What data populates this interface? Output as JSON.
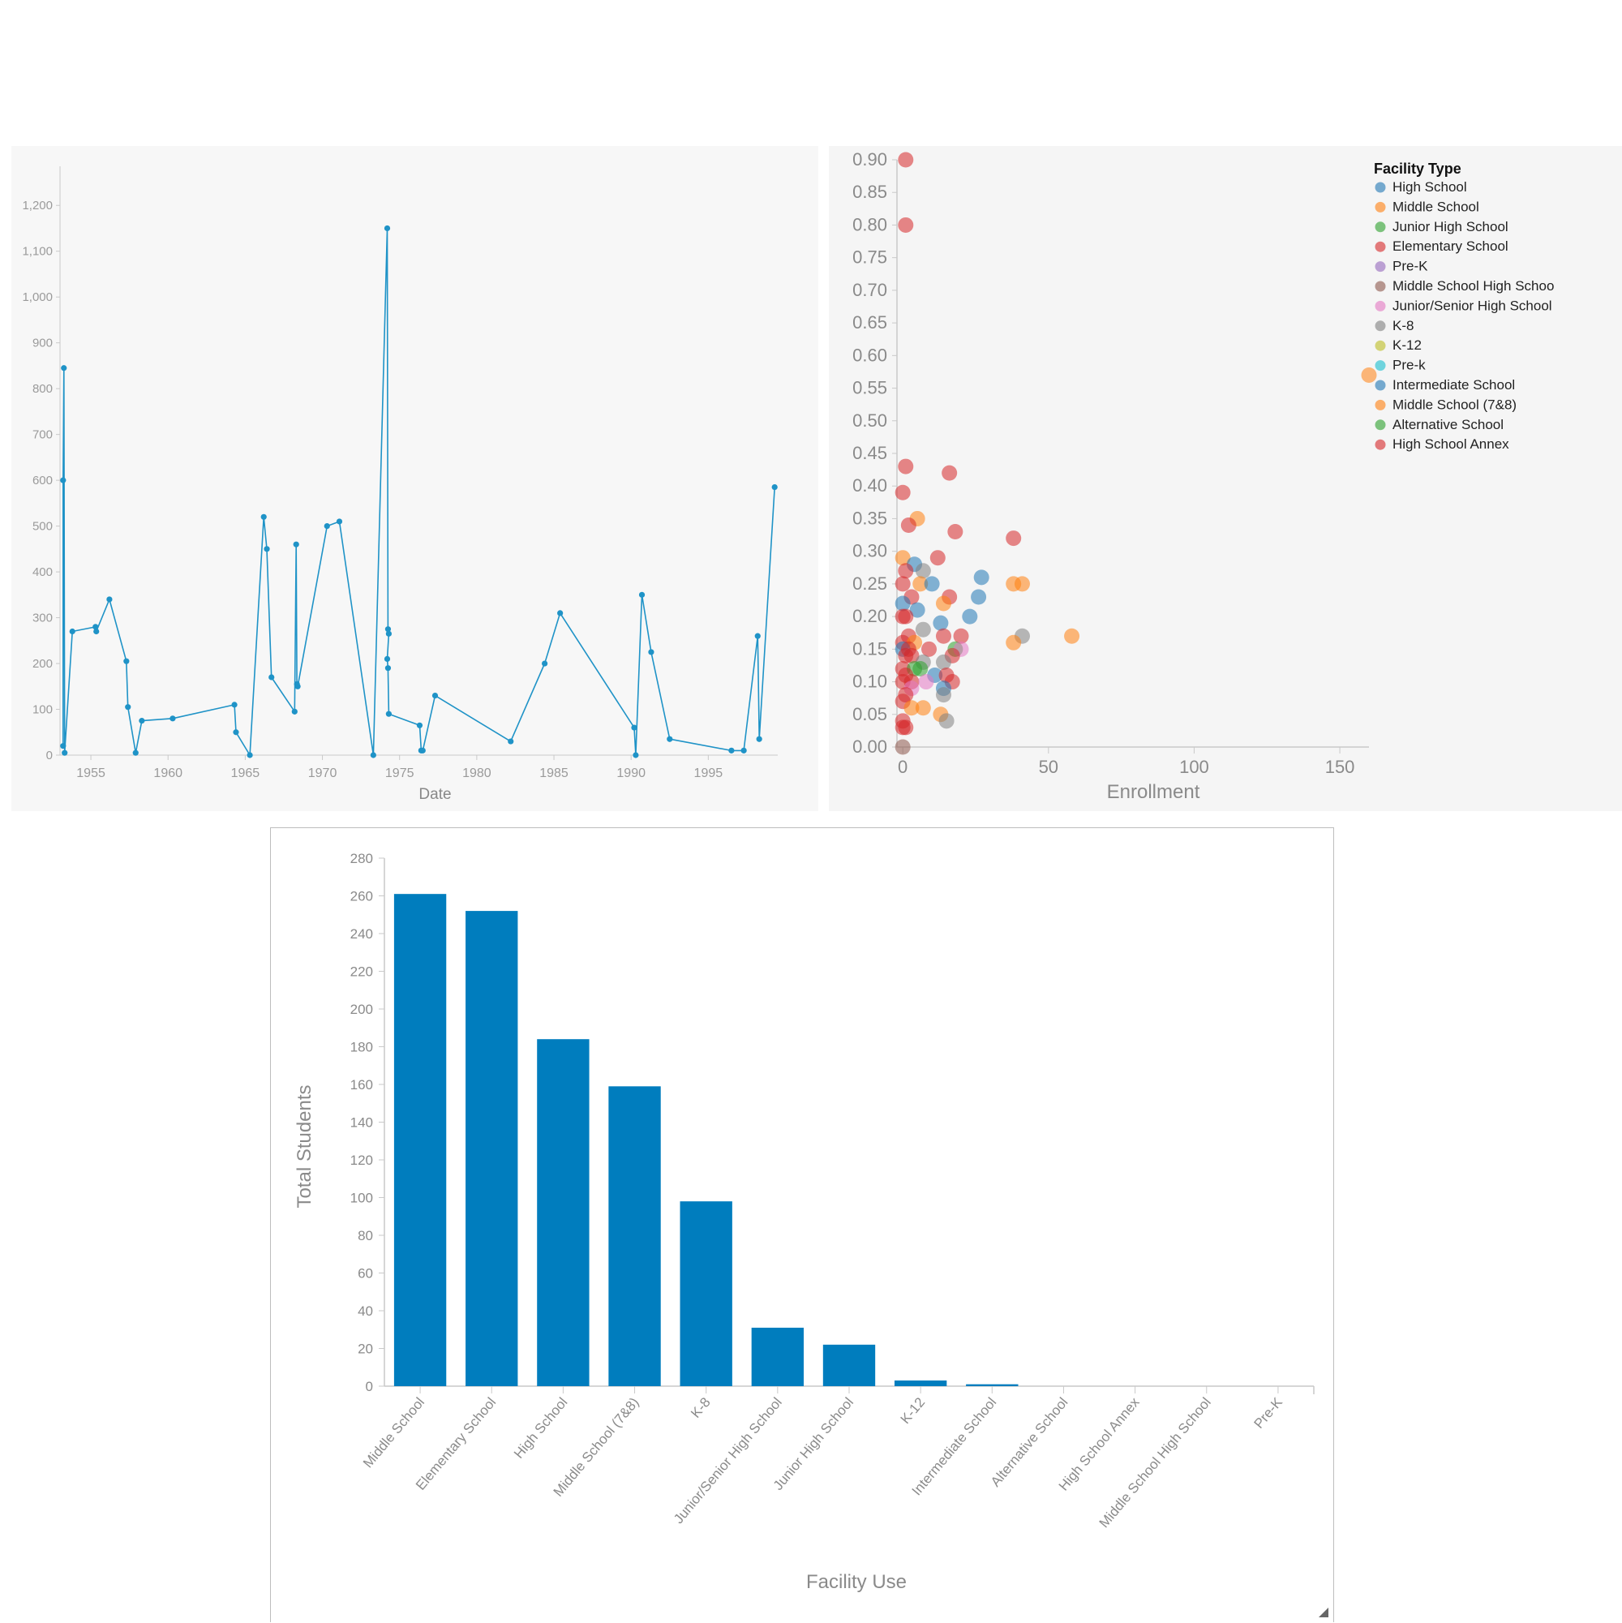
{
  "chart_data": [
    {
      "type": "line",
      "xlabel": "Date",
      "ylabel": "",
      "xlim": [
        1953,
        1999.5
      ],
      "ylim": [
        0,
        1250
      ],
      "x_ticks": [
        "1955",
        "1960",
        "1965",
        "1970",
        "1975",
        "1980",
        "1985",
        "1990",
        "1995"
      ],
      "y_ticks": [
        "0",
        "100",
        "200",
        "300",
        "400",
        "500",
        "600",
        "700",
        "800",
        "900",
        "1,000",
        "1,100",
        "1,200"
      ],
      "color": "#1f93c7",
      "points": [
        [
          1953.2,
          20
        ],
        [
          1953.2,
          600
        ],
        [
          1953.25,
          845
        ],
        [
          1953.3,
          5
        ],
        [
          1953.8,
          270
        ],
        [
          1955.3,
          280
        ],
        [
          1955.35,
          270
        ],
        [
          1956.2,
          340
        ],
        [
          1957.3,
          205
        ],
        [
          1957.4,
          105
        ],
        [
          1957.9,
          5
        ],
        [
          1958.3,
          75
        ],
        [
          1960.3,
          80
        ],
        [
          1964.3,
          110
        ],
        [
          1964.4,
          50
        ],
        [
          1965.3,
          0
        ],
        [
          1966.2,
          520
        ],
        [
          1966.4,
          450
        ],
        [
          1966.7,
          170
        ],
        [
          1968.2,
          95
        ],
        [
          1968.3,
          460
        ],
        [
          1968.35,
          155
        ],
        [
          1968.4,
          150
        ],
        [
          1970.3,
          500
        ],
        [
          1971.1,
          510
        ],
        [
          1973.3,
          0
        ],
        [
          1974.2,
          1150
        ],
        [
          1974.25,
          275
        ],
        [
          1974.3,
          265
        ],
        [
          1974.2,
          210
        ],
        [
          1974.25,
          190
        ],
        [
          1974.3,
          90
        ],
        [
          1976.3,
          65
        ],
        [
          1976.4,
          10
        ],
        [
          1976.5,
          10
        ],
        [
          1977.3,
          130
        ],
        [
          1982.2,
          30
        ],
        [
          1984.4,
          200
        ],
        [
          1985.4,
          310
        ],
        [
          1990.2,
          60
        ],
        [
          1990.3,
          0
        ],
        [
          1990.7,
          350
        ],
        [
          1991.3,
          225
        ],
        [
          1992.5,
          35
        ],
        [
          1996.5,
          10
        ],
        [
          1997.3,
          10
        ],
        [
          1998.2,
          260
        ],
        [
          1998.3,
          35
        ],
        [
          1999.3,
          585
        ]
      ]
    },
    {
      "type": "scatter",
      "xlabel": "Enrollment",
      "ylabel": "",
      "xlim": [
        -2,
        160
      ],
      "ylim": [
        0,
        0.9
      ],
      "x_ticks": [
        "0",
        "50",
        "100",
        "150"
      ],
      "y_ticks": [
        "0.00",
        "0.05",
        "0.10",
        "0.15",
        "0.20",
        "0.25",
        "0.30",
        "0.35",
        "0.40",
        "0.45",
        "0.50",
        "0.55",
        "0.60",
        "0.65",
        "0.70",
        "0.75",
        "0.80",
        "0.85",
        "0.90"
      ],
      "legend": {
        "title": "Facility Type",
        "placement": "top-right",
        "entries": [
          {
            "label": "High School",
            "color": "#1f77b4"
          },
          {
            "label": "Middle School",
            "color": "#ff7f0e"
          },
          {
            "label": "Junior High School",
            "color": "#2ca02c"
          },
          {
            "label": "Elementary School",
            "color": "#d62728"
          },
          {
            "label": "Pre-K",
            "color": "#9467bd"
          },
          {
            "label": "Middle School High Schoo",
            "color": "#8c564b"
          },
          {
            "label": "Junior/Senior High School",
            "color": "#e377c2"
          },
          {
            "label": "K-8",
            "color": "#7f7f7f"
          },
          {
            "label": "K-12",
            "color": "#bcbd22"
          },
          {
            "label": "Pre-k",
            "color": "#17becf"
          },
          {
            "label": "Intermediate School",
            "color": "#1f77b4"
          },
          {
            "label": "Middle School (7&8)",
            "color": "#ff7f0e"
          },
          {
            "label": "Alternative School",
            "color": "#2ca02c"
          },
          {
            "label": "High School Annex",
            "color": "#d62728"
          }
        ]
      },
      "points": [
        {
          "x": 1,
          "y": 0.9,
          "t": 3
        },
        {
          "x": 1,
          "y": 0.8,
          "t": 3
        },
        {
          "x": 160,
          "y": 0.57,
          "t": 1
        },
        {
          "x": 1,
          "y": 0.43,
          "t": 3
        },
        {
          "x": 0,
          "y": 0.39,
          "t": 3
        },
        {
          "x": 16,
          "y": 0.42,
          "t": 3
        },
        {
          "x": 5,
          "y": 0.35,
          "t": 1
        },
        {
          "x": 2,
          "y": 0.34,
          "t": 3
        },
        {
          "x": 18,
          "y": 0.33,
          "t": 3
        },
        {
          "x": 38,
          "y": 0.32,
          "t": 3
        },
        {
          "x": 12,
          "y": 0.29,
          "t": 3
        },
        {
          "x": 0,
          "y": 0.29,
          "t": 1
        },
        {
          "x": 4,
          "y": 0.28,
          "t": 0
        },
        {
          "x": 1,
          "y": 0.27,
          "t": 3
        },
        {
          "x": 7,
          "y": 0.27,
          "t": 7
        },
        {
          "x": 27,
          "y": 0.26,
          "t": 0
        },
        {
          "x": 0,
          "y": 0.25,
          "t": 3
        },
        {
          "x": 6,
          "y": 0.25,
          "t": 1
        },
        {
          "x": 10,
          "y": 0.25,
          "t": 0
        },
        {
          "x": 38,
          "y": 0.25,
          "t": 1
        },
        {
          "x": 41,
          "y": 0.25,
          "t": 1
        },
        {
          "x": 3,
          "y": 0.23,
          "t": 3
        },
        {
          "x": 16,
          "y": 0.23,
          "t": 3
        },
        {
          "x": 26,
          "y": 0.23,
          "t": 0
        },
        {
          "x": 0,
          "y": 0.22,
          "t": 0
        },
        {
          "x": 14,
          "y": 0.22,
          "t": 1
        },
        {
          "x": 5,
          "y": 0.21,
          "t": 0
        },
        {
          "x": 0,
          "y": 0.2,
          "t": 3
        },
        {
          "x": 1,
          "y": 0.2,
          "t": 3
        },
        {
          "x": 23,
          "y": 0.2,
          "t": 0
        },
        {
          "x": 13,
          "y": 0.19,
          "t": 0
        },
        {
          "x": 7,
          "y": 0.18,
          "t": 7
        },
        {
          "x": 2,
          "y": 0.17,
          "t": 3
        },
        {
          "x": 14,
          "y": 0.17,
          "t": 3
        },
        {
          "x": 20,
          "y": 0.17,
          "t": 3
        },
        {
          "x": 41,
          "y": 0.17,
          "t": 7
        },
        {
          "x": 58,
          "y": 0.17,
          "t": 1
        },
        {
          "x": 0,
          "y": 0.16,
          "t": 3
        },
        {
          "x": 4,
          "y": 0.16,
          "t": 1
        },
        {
          "x": 38,
          "y": 0.16,
          "t": 1
        },
        {
          "x": 0,
          "y": 0.15,
          "t": 0
        },
        {
          "x": 2,
          "y": 0.15,
          "t": 3
        },
        {
          "x": 9,
          "y": 0.15,
          "t": 3
        },
        {
          "x": 18,
          "y": 0.15,
          "t": 2
        },
        {
          "x": 20,
          "y": 0.15,
          "t": 6
        },
        {
          "x": 1,
          "y": 0.14,
          "t": 3
        },
        {
          "x": 3,
          "y": 0.14,
          "t": 3
        },
        {
          "x": 17,
          "y": 0.14,
          "t": 3
        },
        {
          "x": 7,
          "y": 0.13,
          "t": 7
        },
        {
          "x": 14,
          "y": 0.13,
          "t": 7
        },
        {
          "x": 0,
          "y": 0.12,
          "t": 3
        },
        {
          "x": 4,
          "y": 0.12,
          "t": 2
        },
        {
          "x": 6,
          "y": 0.12,
          "t": 2
        },
        {
          "x": 1,
          "y": 0.11,
          "t": 3
        },
        {
          "x": 11,
          "y": 0.11,
          "t": 0
        },
        {
          "x": 15,
          "y": 0.11,
          "t": 3
        },
        {
          "x": 0,
          "y": 0.1,
          "t": 3
        },
        {
          "x": 3,
          "y": 0.1,
          "t": 3
        },
        {
          "x": 8,
          "y": 0.1,
          "t": 6
        },
        {
          "x": 17,
          "y": 0.1,
          "t": 3
        },
        {
          "x": 3,
          "y": 0.09,
          "t": 6
        },
        {
          "x": 14,
          "y": 0.09,
          "t": 0
        },
        {
          "x": 1,
          "y": 0.08,
          "t": 3
        },
        {
          "x": 14,
          "y": 0.08,
          "t": 7
        },
        {
          "x": 0,
          "y": 0.07,
          "t": 3
        },
        {
          "x": 3,
          "y": 0.06,
          "t": 1
        },
        {
          "x": 7,
          "y": 0.06,
          "t": 1
        },
        {
          "x": 13,
          "y": 0.05,
          "t": 1
        },
        {
          "x": 0,
          "y": 0.04,
          "t": 3
        },
        {
          "x": 15,
          "y": 0.04,
          "t": 7
        },
        {
          "x": 0,
          "y": 0.03,
          "t": 3
        },
        {
          "x": 1,
          "y": 0.03,
          "t": 3
        },
        {
          "x": 0,
          "y": 0.0,
          "t": 5
        }
      ]
    },
    {
      "type": "bar",
      "xlabel": "Facility Use",
      "ylabel": "Total Students",
      "ylim": [
        0,
        280
      ],
      "y_ticks": [
        "0",
        "20",
        "40",
        "60",
        "80",
        "100",
        "120",
        "140",
        "160",
        "180",
        "200",
        "220",
        "240",
        "260",
        "280"
      ],
      "color": "#007dbe",
      "categories": [
        "Middle School",
        "Elementary School",
        "High School",
        "Middle School (7&8)",
        "K-8",
        "Junior/Senior High School",
        "Junior High School",
        "K-12",
        "Intermediate School",
        "Alternative School",
        "High School Annex",
        "Middle School High School",
        "Pre-K"
      ],
      "values": [
        261,
        252,
        184,
        159,
        98,
        31,
        22,
        3,
        1,
        0,
        0,
        0,
        0
      ]
    }
  ]
}
